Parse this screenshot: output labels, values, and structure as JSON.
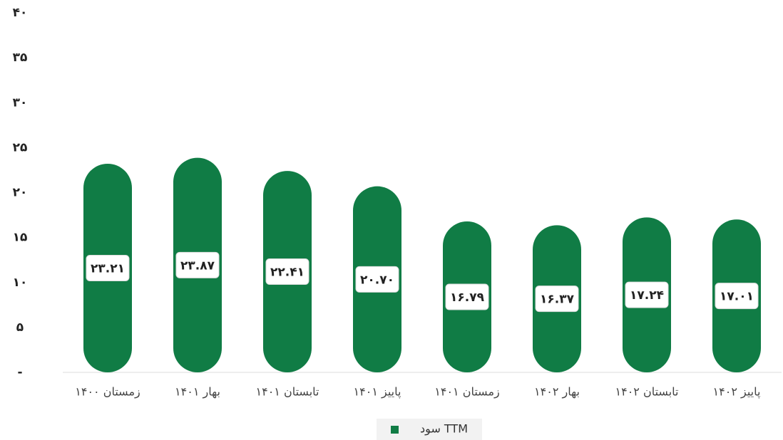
{
  "chart_data": {
    "type": "bar",
    "categories": [
      "زمستان ۱۴۰۰",
      "بهار ۱۴۰۱",
      "تابستان ۱۴۰۱",
      "پاییز ۱۴۰۱",
      "زمستان ۱۴۰۱",
      "بهار ۱۴۰۲",
      "تابستان ۱۴۰۲",
      "پاییز ۱۴۰۲"
    ],
    "series": [
      {
        "name": "سود TTM",
        "color": "#107c45",
        "values": [
          23.21,
          23.87,
          22.41,
          20.7,
          16.79,
          16.37,
          17.24,
          17.01
        ],
        "value_labels": [
          "۲۳.۲۱",
          "۲۳.۸۷",
          "۲۲.۴۱",
          "۲۰.۷۰",
          "۱۶.۷۹",
          "۱۶.۳۷",
          "۱۷.۲۴",
          "۱۷.۰۱"
        ]
      }
    ],
    "ylim": [
      0,
      40
    ],
    "yticks": [
      {
        "value": 0,
        "label": "-"
      },
      {
        "value": 5,
        "label": "۵"
      },
      {
        "value": 10,
        "label": "۱۰"
      },
      {
        "value": 15,
        "label": "۱۵"
      },
      {
        "value": 20,
        "label": "۲۰"
      },
      {
        "value": 25,
        "label": "۲۵"
      },
      {
        "value": 30,
        "label": "۳۰"
      },
      {
        "value": 35,
        "label": "۳۵"
      },
      {
        "value": 40,
        "label": "۴۰"
      }
    ],
    "legend": "bottom"
  }
}
